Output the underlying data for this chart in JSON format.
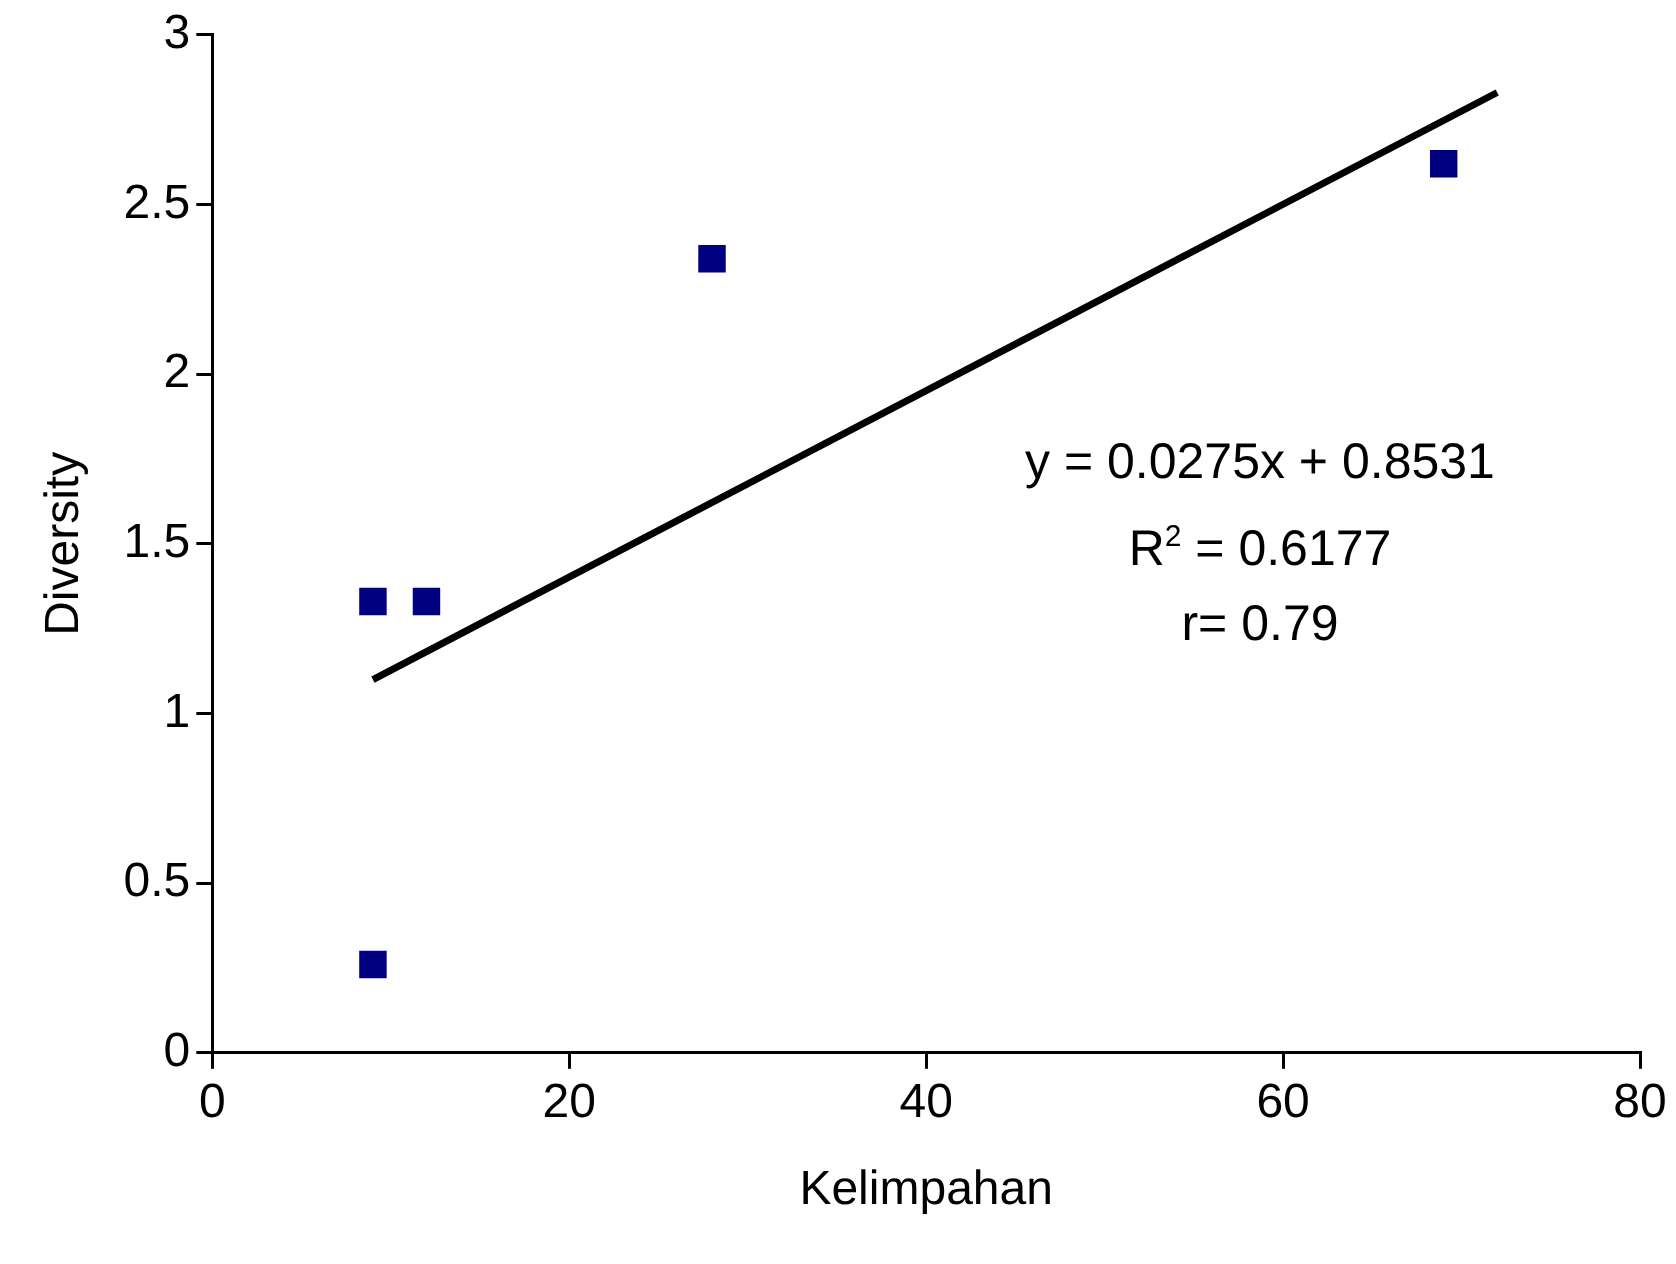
{
  "chart_data": {
    "type": "scatter",
    "xlabel": "Kelimpahan",
    "ylabel": "Diversity",
    "xlim": [
      0,
      80
    ],
    "xticks": [
      0,
      20,
      40,
      60,
      80
    ],
    "ylim": [
      0,
      3
    ],
    "yticks": [
      0,
      0.5,
      1,
      1.5,
      2,
      2.5,
      3
    ],
    "grid": false,
    "legend": false,
    "marker": "square",
    "series": [
      {
        "color": "#000080",
        "x": [
          9,
          9,
          12,
          28,
          69
        ],
        "values": [
          0.26,
          1.33,
          1.33,
          2.34,
          2.62
        ]
      },
      {
        "type": "line",
        "color": "#000000",
        "marker": "none",
        "x": [
          9,
          72
        ],
        "values": [
          1.1,
          2.83
        ]
      }
    ],
    "annotations": [
      "y = 0.0275x + 0.8531",
      "R$^{2}$ = 0.6177",
      "r= 0.79"
    ]
  }
}
